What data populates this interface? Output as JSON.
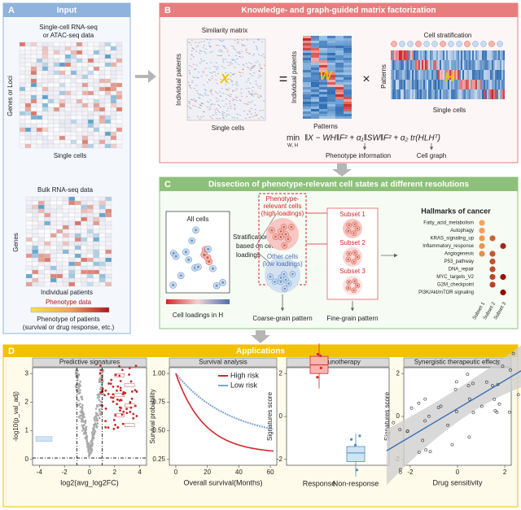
{
  "panel_a": {
    "letter": "A",
    "title": "Input",
    "sc_data": [
      "Single-cell RNA-seq",
      "or ATAC-seq data"
    ],
    "sc_y_label": "Genes or Loci",
    "sc_x_label": "Single cells",
    "bulk_data": "Bulk RNA-seq data",
    "bulk_y_label": "Genes",
    "bulk_x_label": "Individual patients",
    "phenotype_title": "Phenotype data",
    "phenotype_desc": [
      "Phenotype of patients",
      "(survival or drug response, etc.)"
    ]
  },
  "panel_b": {
    "letter": "B",
    "title": "Knowledge- and graph-guided matrix factorization",
    "similarity": "Similarity matrix",
    "x_rows": "Individual patients",
    "x_symbol": "X",
    "x_cols": "Single cells",
    "equals": "=",
    "w_rows": "Individual patients",
    "w_symbol": "W",
    "w_cols": "Patterns",
    "times": "×",
    "stratification": "Cell stratification",
    "h_rows": "Patterns",
    "h_symbol": "H",
    "h_cols": "Single cells",
    "formula_min": "min",
    "formula_sub": "W, H",
    "formula": "‖X − WH‖F² + α₁‖SW‖F² + α₂ tr(HLHᵀ)",
    "phenotype_info": "Phenotype information",
    "cell_graph": "Cell graph"
  },
  "panel_c": {
    "letter": "C",
    "title": "Dissection of phenotype-relevant cell states at different resolutions",
    "all_cells": "All cells",
    "stratification": [
      "Stratification",
      "based on cell",
      "loadings"
    ],
    "loadings": "Cell loadings in H",
    "relevant": [
      "Phenotype-",
      "relevant cells",
      "(high loadings)"
    ],
    "other": [
      "Other cells",
      "(low loadings)"
    ],
    "subsets": [
      "Subset 1",
      "Subset 2",
      "Subset 3"
    ],
    "coarse": "Coarse-grain pattern",
    "fine": "Fine-grain pattern",
    "hallmarks_title": "Hallmarks of cancer",
    "hallmarks": [
      "Fatty_acid_metabolism",
      "Autophagy",
      "KRAS_signaling_up",
      "Inflammatory_response",
      "Angiogenesis",
      "P53_pathway",
      "DNA_repair",
      "MYC_targets_V2",
      "G2M_checkpoint",
      "PI3K/Akt/mTOR signaling"
    ],
    "subset_axis": [
      "Subset 1",
      "Subset 2",
      "Subset 3"
    ]
  },
  "panel_d": {
    "letter": "D",
    "title": "Applications",
    "predictive": {
      "title": "Predictive signatures",
      "y_label": "-log10(p_val_adj)",
      "x_label": "log2(avg_log2FC)",
      "xticks": [
        -4,
        -2,
        0,
        2,
        4
      ],
      "yticks": [
        0,
        1,
        2,
        3
      ]
    },
    "survival": {
      "title": "Survival analysis",
      "y_label": "Survival probability",
      "x_label": "Overall survival(Months)",
      "xticks": [
        0,
        20,
        40,
        60
      ],
      "yticks": [
        "0.25",
        "0.50",
        "0.75",
        "1.00"
      ],
      "legend": [
        "High risk",
        "Low risk"
      ]
    },
    "immuno": {
      "title": "Immunotherapy",
      "y_label": "Signatures score",
      "yticks": [
        -2,
        0,
        2
      ],
      "groups": [
        "Response",
        "Non-response"
      ]
    },
    "synergy": {
      "title": "Synergistic therapeutic effects",
      "y_label": "Signatures score",
      "x_label": "Drug sensitivity",
      "xticks": [
        -2,
        0,
        2
      ],
      "yticks": [
        -2,
        0,
        2
      ]
    }
  }
}
